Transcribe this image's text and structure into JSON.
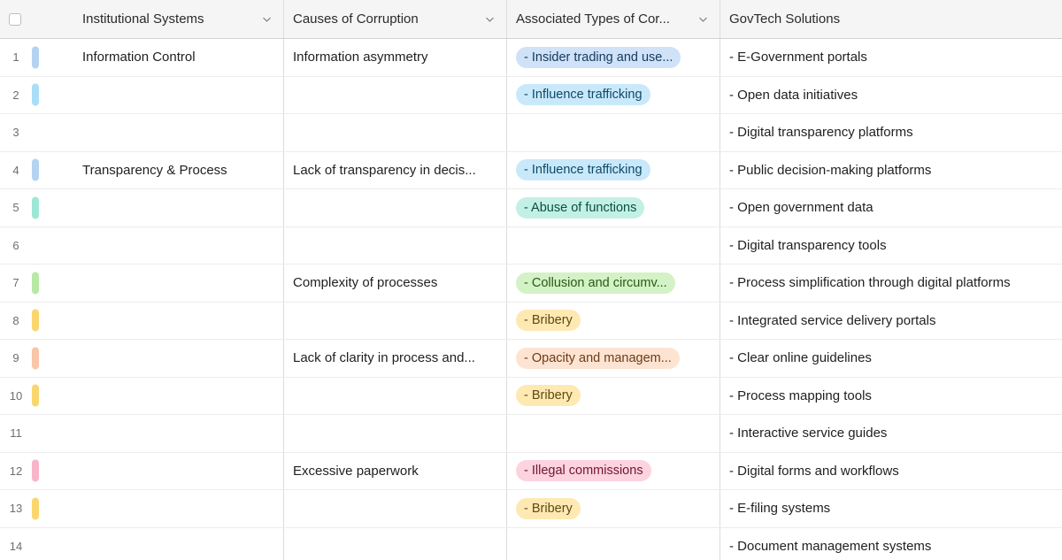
{
  "header": {
    "columns": [
      {
        "label": "Institutional Systems"
      },
      {
        "label": "Causes of Corruption"
      },
      {
        "label": "Associated Types of Cor..."
      },
      {
        "label": "GovTech Solutions"
      }
    ]
  },
  "colors": {
    "blue": {
      "bar": "#b4d3f2",
      "bg": "#cfe2f8",
      "text": "#17395c"
    },
    "cyan": {
      "bar": "#a9def7",
      "bg": "#c9e9fb",
      "text": "#0c4a68"
    },
    "teal": {
      "bar": "#9de7d6",
      "bg": "#c3f0e5",
      "text": "#0a4f42"
    },
    "green": {
      "bar": "#b6eaa4",
      "bg": "#d3f2c5",
      "text": "#2a5917"
    },
    "yellow": {
      "bar": "#fad66f",
      "bg": "#ffe9b3",
      "text": "#5d4a10"
    },
    "orange": {
      "bar": "#f9c6a8",
      "bg": "#fde4d2",
      "text": "#6e3a16"
    },
    "pink": {
      "bar": "#f8b5ca",
      "bg": "#fcd3df",
      "text": "#701536"
    }
  },
  "rows": [
    {
      "num": "1",
      "bar": "blue",
      "institutional": "Information Control",
      "cause": "Information asymmetry",
      "type": {
        "label": "- Insider trading and use...",
        "color": "blue"
      },
      "govtech": "- E-Government portals"
    },
    {
      "num": "2",
      "bar": "cyan",
      "institutional": "",
      "cause": "",
      "type": {
        "label": "- Influence trafficking",
        "color": "cyan"
      },
      "govtech": "- Open data initiatives"
    },
    {
      "num": "3",
      "bar": null,
      "institutional": "",
      "cause": "",
      "type": null,
      "govtech": "- Digital transparency platforms"
    },
    {
      "num": "4",
      "bar": "blue",
      "institutional": "Transparency & Process",
      "cause": "Lack of transparency in decis...",
      "type": {
        "label": "- Influence trafficking",
        "color": "cyan"
      },
      "govtech": "- Public decision-making platforms"
    },
    {
      "num": "5",
      "bar": "teal",
      "institutional": "",
      "cause": "",
      "type": {
        "label": "- Abuse of functions",
        "color": "teal"
      },
      "govtech": "- Open government data"
    },
    {
      "num": "6",
      "bar": null,
      "institutional": "",
      "cause": "",
      "type": null,
      "govtech": "- Digital transparency tools"
    },
    {
      "num": "7",
      "bar": "green",
      "institutional": "",
      "cause": "Complexity of processes",
      "type": {
        "label": "- Collusion and circumv...",
        "color": "green"
      },
      "govtech": "- Process simplification through digital platforms"
    },
    {
      "num": "8",
      "bar": "yellow",
      "institutional": "",
      "cause": "",
      "type": {
        "label": "- Bribery",
        "color": "yellow"
      },
      "govtech": "- Integrated service delivery portals"
    },
    {
      "num": "9",
      "bar": "orange",
      "institutional": "",
      "cause": "Lack of clarity in process and...",
      "type": {
        "label": "- Opacity and managem...",
        "color": "orange"
      },
      "govtech": "- Clear online guidelines"
    },
    {
      "num": "10",
      "bar": "yellow",
      "institutional": "",
      "cause": "",
      "type": {
        "label": "- Bribery",
        "color": "yellow"
      },
      "govtech": "- Process mapping tools"
    },
    {
      "num": "11",
      "bar": null,
      "institutional": "",
      "cause": "",
      "type": null,
      "govtech": "- Interactive service guides"
    },
    {
      "num": "12",
      "bar": "pink",
      "institutional": "",
      "cause": "Excessive paperwork",
      "type": {
        "label": "- Illegal commissions",
        "color": "pink"
      },
      "govtech": "- Digital forms and workflows"
    },
    {
      "num": "13",
      "bar": "yellow",
      "institutional": "",
      "cause": "",
      "type": {
        "label": "- Bribery",
        "color": "yellow"
      },
      "govtech": "- E-filing systems"
    },
    {
      "num": "14",
      "bar": null,
      "institutional": "",
      "cause": "",
      "type": null,
      "govtech": "- Document management systems"
    }
  ]
}
